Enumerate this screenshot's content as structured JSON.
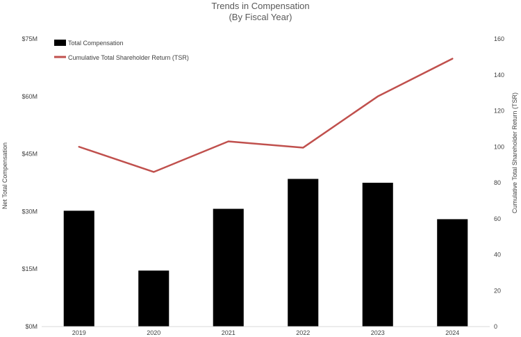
{
  "chart_data": {
    "type": "bar",
    "title": "Trends in Compensation",
    "subtitle": "(By Fiscal Year)",
    "categories": [
      "2019",
      "2020",
      "2021",
      "2022",
      "2023",
      "2024"
    ],
    "series": [
      {
        "name": "Total Compensation",
        "type": "bar",
        "axis": "left",
        "color": "#000000",
        "values": [
          30.2,
          14.6,
          30.7,
          38.5,
          37.5,
          28.0
        ]
      },
      {
        "name": "Cumulative Total Shareholder Return (TSR)",
        "type": "line",
        "axis": "right",
        "color": "#c0504d",
        "values": [
          100,
          86,
          103,
          99.5,
          128,
          149
        ]
      }
    ],
    "ylabel": "Net Total Compensation",
    "y2label": "Cumulative Total Shareholder Return (TSR)",
    "ylim": [
      0,
      75
    ],
    "y2lim": [
      0,
      160
    ],
    "yticks": [
      0,
      15,
      30,
      45,
      60,
      75
    ],
    "yticklabels": [
      "$0M",
      "$15M",
      "$30M",
      "$45M",
      "$60M",
      "$75M"
    ],
    "y2ticks": [
      0,
      20,
      40,
      60,
      80,
      100,
      120,
      140,
      160
    ],
    "y2ticklabels": [
      "0",
      "20",
      "40",
      "60",
      "80",
      "100",
      "120",
      "140",
      "160"
    ],
    "grid": false,
    "legend": "top-left"
  }
}
